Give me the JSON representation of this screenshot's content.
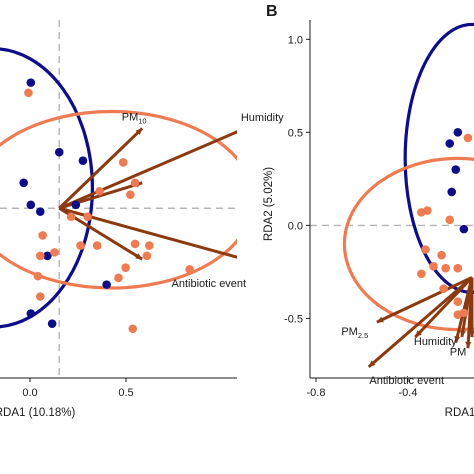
{
  "colors": {
    "group_a": "#0d0d8a",
    "group_b": "#ee7b52",
    "vector": "#8b3a10",
    "dash": "#b5b5b5"
  },
  "chart_data": [
    {
      "type": "scatter",
      "panel": "A",
      "panel_label": "",
      "xlabel": "RDA1 (10.18%)",
      "ylabel": "",
      "xlim": [
        -0.25,
        0.75
      ],
      "ylim": [
        -1.0,
        1.05
      ],
      "xticks": [
        "0.0",
        "0.5"
      ],
      "yticks": [],
      "ellipses": [
        {
          "color": "#0d0d8a",
          "cx": -0.28,
          "cy": 0.12,
          "rx": 0.42,
          "ry": 0.82,
          "angle": 0
        },
        {
          "color": "#ee7b52",
          "cx": 0.22,
          "cy": 0.05,
          "rx": 0.6,
          "ry": 0.52,
          "angle": 0
        }
      ],
      "series": [
        {
          "color": "#0d0d8a",
          "points": [
            [
              -0.12,
              0.74
            ],
            [
              0.0,
              0.33
            ],
            [
              0.1,
              0.28
            ],
            [
              -0.15,
              0.15
            ],
            [
              -0.12,
              0.02
            ],
            [
              -0.08,
              -0.02
            ],
            [
              0.07,
              0.02
            ],
            [
              -0.05,
              -0.28
            ],
            [
              0.2,
              -0.45
            ],
            [
              -0.12,
              -0.62
            ],
            [
              -0.03,
              -0.68
            ]
          ]
        },
        {
          "color": "#ee7b52",
          "points": [
            [
              -0.13,
              0.68
            ],
            [
              0.27,
              0.27
            ],
            [
              0.32,
              0.15
            ],
            [
              0.17,
              0.1
            ],
            [
              0.3,
              0.08
            ],
            [
              0.05,
              -0.05
            ],
            [
              0.12,
              -0.05
            ],
            [
              -0.07,
              -0.16
            ],
            [
              0.09,
              -0.22
            ],
            [
              0.16,
              -0.22
            ],
            [
              -0.02,
              -0.26
            ],
            [
              -0.08,
              -0.28
            ],
            [
              0.32,
              -0.21
            ],
            [
              0.38,
              -0.22
            ],
            [
              0.37,
              -0.28
            ],
            [
              0.28,
              -0.35
            ],
            [
              0.25,
              -0.41
            ],
            [
              0.55,
              -0.36
            ],
            [
              -0.09,
              -0.4
            ],
            [
              0.31,
              -0.71
            ],
            [
              -0.08,
              -0.52
            ]
          ]
        }
      ],
      "vectors": [
        {
          "label": "PM",
          "sub": "10",
          "end": [
            0.35,
            0.47
          ],
          "label_pos": "above"
        },
        {
          "label": "Humidity",
          "sub": "",
          "end": [
            0.8,
            0.48
          ],
          "label_pos": "above-right"
        },
        {
          "label": "Antibiotic event",
          "sub": "",
          "end": [
            0.78,
            -0.3
          ],
          "label_pos": "below-left"
        },
        {
          "label": "",
          "sub": "",
          "end": [
            0.35,
            -0.3
          ],
          "label_pos": "none"
        },
        {
          "label": "",
          "sub": "",
          "end": [
            0.35,
            0.15
          ],
          "label_pos": "none"
        }
      ]
    },
    {
      "type": "scatter",
      "panel": "B",
      "panel_label": "B",
      "xlabel": "RDA1",
      "ylabel": "RDA2 (5.02%)",
      "xlim": [
        -0.88,
        -0.07
      ],
      "ylim": [
        -0.82,
        1.05
      ],
      "xticks": [
        "-0.8",
        "-0.4"
      ],
      "yticks": [
        "1.0",
        "0.5",
        "0.0",
        "-0.5"
      ],
      "ellipses": [
        {
          "color": "#0d0d8a",
          "cx": -0.08,
          "cy": 0.36,
          "rx": 0.33,
          "ry": 0.72,
          "angle": 0
        },
        {
          "color": "#ee7b52",
          "cx": -0.15,
          "cy": -0.1,
          "rx": 0.56,
          "ry": 0.46,
          "angle": 0
        }
      ],
      "series": [
        {
          "color": "#0d0d8a",
          "points": [
            [
              -0.15,
              0.5
            ],
            [
              -0.19,
              0.44
            ],
            [
              -0.16,
              0.3
            ],
            [
              -0.18,
              0.18
            ],
            [
              -0.12,
              -0.02
            ]
          ]
        },
        {
          "color": "#ee7b52",
          "points": [
            [
              -0.1,
              0.47
            ],
            [
              -0.19,
              0.03
            ],
            [
              -0.3,
              0.08
            ],
            [
              -0.33,
              0.07
            ],
            [
              -0.31,
              -0.13
            ],
            [
              -0.33,
              -0.26
            ],
            [
              -0.27,
              -0.22
            ],
            [
              -0.23,
              -0.16
            ],
            [
              -0.21,
              -0.23
            ],
            [
              -0.15,
              -0.23
            ],
            [
              -0.22,
              -0.34
            ],
            [
              -0.15,
              -0.41
            ],
            [
              -0.15,
              -0.48
            ],
            [
              -0.12,
              -0.47
            ]
          ]
        }
      ],
      "vectors": [
        {
          "label": "PM",
          "sub": "2.5",
          "end": [
            -0.55,
            -0.52
          ],
          "label_pos": "below-left"
        },
        {
          "label": "Humidity",
          "sub": "",
          "end": [
            -0.36,
            -0.6
          ],
          "label_pos": "below-left"
        },
        {
          "label": "Antibiotic event",
          "sub": "",
          "end": [
            -0.59,
            -0.76
          ],
          "label_pos": "below"
        },
        {
          "label": "PM",
          "sub": "",
          "end": [
            -0.16,
            -0.63
          ],
          "label_pos": "below-left-near"
        },
        {
          "label": "",
          "sub": "",
          "end": [
            -0.1,
            -0.66
          ],
          "label_pos": "none"
        },
        {
          "label": "",
          "sub": "",
          "end": [
            -0.13,
            -0.6
          ],
          "label_pos": "none"
        },
        {
          "label": "",
          "sub": "",
          "end": [
            -0.08,
            -0.6
          ],
          "label_pos": "none"
        }
      ],
      "vector_origin": [
        -0.08,
        -0.28
      ]
    }
  ]
}
